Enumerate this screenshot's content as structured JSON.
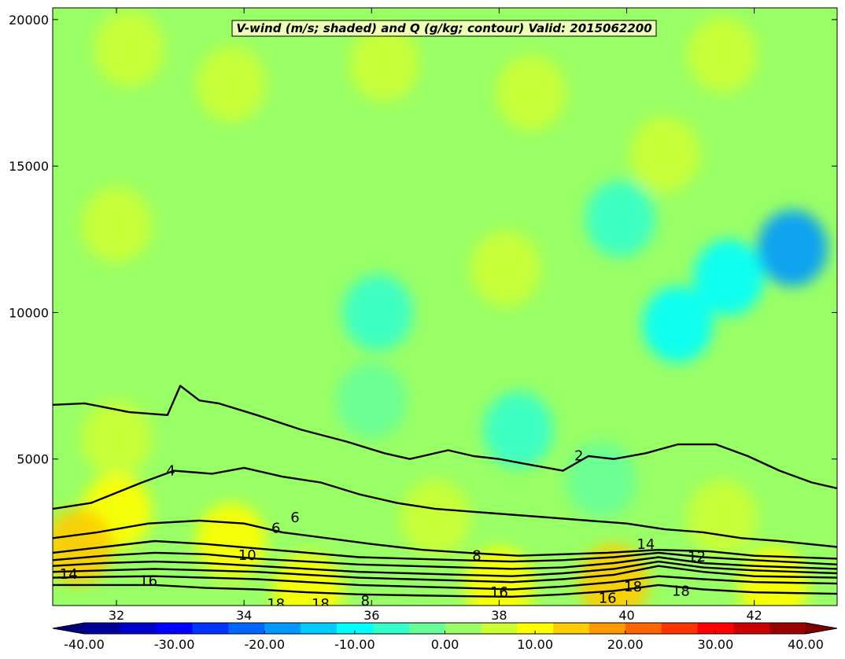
{
  "chart_data": {
    "type": "heatmap",
    "title": "V-wind (m/s; shaded) and Q (g/kg; contour) Valid: 2015062200",
    "xlim": [
      31,
      43.3
    ],
    "ylim": [
      0,
      20400
    ],
    "x_ticks": [
      32,
      34,
      36,
      38,
      40,
      42
    ],
    "x_tick_labels": [
      "32",
      "34",
      "36",
      "38",
      "40",
      "42"
    ],
    "y_ticks": [
      5000,
      10000,
      15000,
      20000
    ],
    "y_tick_labels": [
      "5000",
      "10000",
      "15000",
      "20000"
    ],
    "colorbar": {
      "range": [
        -40,
        40
      ],
      "step": 4,
      "extend": "both",
      "ticks": [
        -40,
        -30,
        -20,
        -10,
        0,
        10,
        20,
        30,
        40
      ],
      "tick_labels": [
        "-40.00",
        "-30.00",
        "-20.00",
        "-10.00",
        "0.00",
        "10.00",
        "20.00",
        "30.00",
        "40.00"
      ],
      "colormap": "jet"
    },
    "shading_regions": [
      {
        "x": 32.2,
        "y": 19000,
        "value": 4
      },
      {
        "x": 33.8,
        "y": 17800,
        "value": 4
      },
      {
        "x": 36.2,
        "y": 18500,
        "value": 4
      },
      {
        "x": 38.5,
        "y": 17500,
        "value": 4
      },
      {
        "x": 41.5,
        "y": 18800,
        "value": 4
      },
      {
        "x": 34.6,
        "y": 15800,
        "value": 2
      },
      {
        "x": 40.6,
        "y": 15400,
        "value": 4
      },
      {
        "x": 32.0,
        "y": 13000,
        "value": 4
      },
      {
        "x": 38.1,
        "y": 11500,
        "value": 4
      },
      {
        "x": 33.0,
        "y": 10500,
        "value": 0
      },
      {
        "x": 36.1,
        "y": 10000,
        "value": -6
      },
      {
        "x": 39.9,
        "y": 13200,
        "value": -8
      },
      {
        "x": 41.6,
        "y": 11200,
        "value": -12
      },
      {
        "x": 42.6,
        "y": 12200,
        "value": -20
      },
      {
        "x": 40.8,
        "y": 9600,
        "value": -9
      },
      {
        "x": 38.3,
        "y": 6000,
        "value": -8
      },
      {
        "x": 36.0,
        "y": 7000,
        "value": -2
      },
      {
        "x": 32.0,
        "y": 5700,
        "value": 4
      },
      {
        "x": 34.5,
        "y": 5200,
        "value": 3
      },
      {
        "x": 39.6,
        "y": 4300,
        "value": -4
      },
      {
        "x": 32.0,
        "y": 3200,
        "value": 8
      },
      {
        "x": 31.4,
        "y": 2000,
        "value": 14
      },
      {
        "x": 33.8,
        "y": 2200,
        "value": 10
      },
      {
        "x": 37.0,
        "y": 3000,
        "value": 5
      },
      {
        "x": 41.5,
        "y": 3000,
        "value": 4
      },
      {
        "x": 39.8,
        "y": 800,
        "value": 12
      },
      {
        "x": 38.0,
        "y": 700,
        "value": 10
      },
      {
        "x": 42.3,
        "y": 700,
        "value": 8
      },
      {
        "x": 35.0,
        "y": 500,
        "value": 8
      }
    ],
    "contours": [
      {
        "level": 2,
        "label": "2",
        "label_x": 39.25,
        "label_y": 5120,
        "points": [
          [
            31,
            6850
          ],
          [
            31.5,
            6900
          ],
          [
            32.2,
            6600
          ],
          [
            32.8,
            6500
          ],
          [
            33.0,
            7500
          ],
          [
            33.3,
            7000
          ],
          [
            33.6,
            6900
          ],
          [
            34.2,
            6500
          ],
          [
            34.9,
            6000
          ],
          [
            35.6,
            5600
          ],
          [
            36.2,
            5200
          ],
          [
            36.6,
            5000
          ],
          [
            37.2,
            5300
          ],
          [
            37.6,
            5100
          ],
          [
            38.0,
            5000
          ],
          [
            38.5,
            4800
          ],
          [
            39.0,
            4600
          ],
          [
            39.4,
            5100
          ],
          [
            39.8,
            5000
          ],
          [
            40.3,
            5200
          ],
          [
            40.8,
            5500
          ],
          [
            41.4,
            5500
          ],
          [
            41.9,
            5100
          ],
          [
            42.4,
            4600
          ],
          [
            42.9,
            4200
          ],
          [
            43.3,
            4000
          ]
        ]
      },
      {
        "level": 4,
        "label": "4",
        "label_x": 32.85,
        "label_y": 4600,
        "points": [
          [
            31,
            3300
          ],
          [
            31.6,
            3500
          ],
          [
            32.4,
            4200
          ],
          [
            32.9,
            4600
          ],
          [
            33.5,
            4500
          ],
          [
            34.0,
            4700
          ],
          [
            34.6,
            4400
          ],
          [
            35.2,
            4200
          ],
          [
            35.8,
            3800
          ],
          [
            36.4,
            3500
          ],
          [
            37.0,
            3300
          ],
          [
            37.6,
            3200
          ],
          [
            38.2,
            3100
          ],
          [
            38.8,
            3000
          ],
          [
            39.4,
            2900
          ],
          [
            40.0,
            2800
          ],
          [
            40.6,
            2600
          ],
          [
            41.2,
            2500
          ],
          [
            41.8,
            2300
          ],
          [
            42.4,
            2200
          ],
          [
            43.3,
            2000
          ]
        ]
      },
      {
        "level": 6,
        "label": "6",
        "label_x": 34.5,
        "label_y": 2650,
        "points": [
          [
            31,
            2300
          ],
          [
            31.7,
            2500
          ],
          [
            32.5,
            2800
          ],
          [
            33.3,
            2900
          ],
          [
            34.0,
            2800
          ],
          [
            34.6,
            2500
          ],
          [
            35.3,
            2300
          ],
          [
            36.0,
            2100
          ],
          [
            36.8,
            1900
          ],
          [
            37.5,
            1800
          ],
          [
            38.3,
            1700
          ],
          [
            39.0,
            1750
          ],
          [
            39.7,
            1800
          ],
          [
            40.5,
            1900
          ],
          [
            41.3,
            1850
          ],
          [
            42.0,
            1700
          ],
          [
            43.3,
            1600
          ]
        ]
      },
      {
        "level": 8,
        "label": "8",
        "label_x": 37.65,
        "label_y": 1710,
        "points": [
          [
            31,
            1800
          ],
          [
            31.8,
            2000
          ],
          [
            32.6,
            2200
          ],
          [
            33.4,
            2100
          ],
          [
            34.2,
            1950
          ],
          [
            35.0,
            1800
          ],
          [
            35.8,
            1650
          ],
          [
            36.6,
            1600
          ],
          [
            37.4,
            1550
          ],
          [
            38.2,
            1500
          ],
          [
            39.0,
            1550
          ],
          [
            39.8,
            1650
          ],
          [
            40.5,
            1800
          ],
          [
            41.2,
            1650
          ],
          [
            42.0,
            1550
          ],
          [
            43.3,
            1400
          ]
        ]
      },
      {
        "level": 10,
        "label": "10",
        "label_x": 34.05,
        "label_y": 1720,
        "points": [
          [
            31,
            1550
          ],
          [
            31.8,
            1700
          ],
          [
            32.6,
            1800
          ],
          [
            33.4,
            1750
          ],
          [
            34.2,
            1600
          ],
          [
            35.0,
            1500
          ],
          [
            35.8,
            1400
          ],
          [
            36.6,
            1350
          ],
          [
            37.4,
            1300
          ],
          [
            38.2,
            1250
          ],
          [
            39.0,
            1300
          ],
          [
            39.8,
            1450
          ],
          [
            40.5,
            1650
          ],
          [
            41.2,
            1450
          ],
          [
            42.0,
            1350
          ],
          [
            43.3,
            1250
          ]
        ]
      },
      {
        "level": 12,
        "label": "12",
        "label_x": 41.1,
        "label_y": 1660,
        "points": [
          [
            31,
            1350
          ],
          [
            31.8,
            1450
          ],
          [
            32.6,
            1500
          ],
          [
            33.4,
            1450
          ],
          [
            34.2,
            1350
          ],
          [
            35.0,
            1250
          ],
          [
            35.8,
            1150
          ],
          [
            36.6,
            1100
          ],
          [
            37.4,
            1050
          ],
          [
            38.2,
            1000
          ],
          [
            39.0,
            1100
          ],
          [
            39.8,
            1250
          ],
          [
            40.5,
            1500
          ],
          [
            41.2,
            1300
          ],
          [
            42.0,
            1200
          ],
          [
            43.3,
            1100
          ]
        ]
      },
      {
        "level": 14,
        "label": "14",
        "label_x": 31.25,
        "label_y": 1080,
        "points": [
          [
            31,
            1150
          ],
          [
            31.8,
            1200
          ],
          [
            32.6,
            1250
          ],
          [
            33.4,
            1200
          ],
          [
            34.2,
            1150
          ],
          [
            35.0,
            1050
          ],
          [
            35.8,
            950
          ],
          [
            36.6,
            900
          ],
          [
            37.4,
            850
          ],
          [
            38.2,
            800
          ],
          [
            39.0,
            900
          ],
          [
            39.8,
            1050
          ],
          [
            40.5,
            1350
          ],
          [
            41.2,
            1150
          ],
          [
            42.0,
            1000
          ],
          [
            43.3,
            950
          ]
        ]
      },
      {
        "level": 16,
        "label": "16",
        "label_x": 32.5,
        "label_y": 850,
        "points": [
          [
            31,
            950
          ],
          [
            31.8,
            980
          ],
          [
            32.6,
            1000
          ],
          [
            33.4,
            950
          ],
          [
            34.2,
            900
          ],
          [
            35.0,
            800
          ],
          [
            35.8,
            700
          ],
          [
            36.6,
            650
          ],
          [
            37.4,
            600
          ],
          [
            38.2,
            550
          ],
          [
            39.0,
            650
          ],
          [
            39.8,
            800
          ],
          [
            40.5,
            1000
          ],
          [
            41.2,
            900
          ],
          [
            42.0,
            800
          ],
          [
            43.3,
            750
          ]
        ]
      },
      {
        "level": 18,
        "label": "18",
        "label_x": 40.85,
        "label_y": 500,
        "points": [
          [
            31,
            700
          ],
          [
            31.8,
            700
          ],
          [
            32.6,
            700
          ],
          [
            33.4,
            600
          ],
          [
            34.2,
            550
          ],
          [
            35.0,
            450
          ],
          [
            35.8,
            380
          ],
          [
            36.6,
            350
          ],
          [
            37.4,
            320
          ],
          [
            38.2,
            300
          ],
          [
            39.0,
            380
          ],
          [
            39.8,
            500
          ],
          [
            40.5,
            700
          ],
          [
            41.2,
            550
          ],
          [
            42.0,
            450
          ],
          [
            43.3,
            400
          ]
        ]
      }
    ],
    "extra_contour_labels": [
      {
        "label": "6",
        "x": 34.8,
        "y": 3000
      },
      {
        "label": "16",
        "x": 38.0,
        "y": 450
      },
      {
        "label": "16",
        "x": 39.7,
        "y": 250
      },
      {
        "label": "14",
        "x": 40.3,
        "y": 2100
      },
      {
        "label": "18",
        "x": 40.1,
        "y": 650
      },
      {
        "label": "18",
        "x": 34.5,
        "y": 60
      },
      {
        "label": "18",
        "x": 35.2,
        "y": 60
      },
      {
        "label": "8",
        "x": 35.9,
        "y": 160
      }
    ]
  }
}
